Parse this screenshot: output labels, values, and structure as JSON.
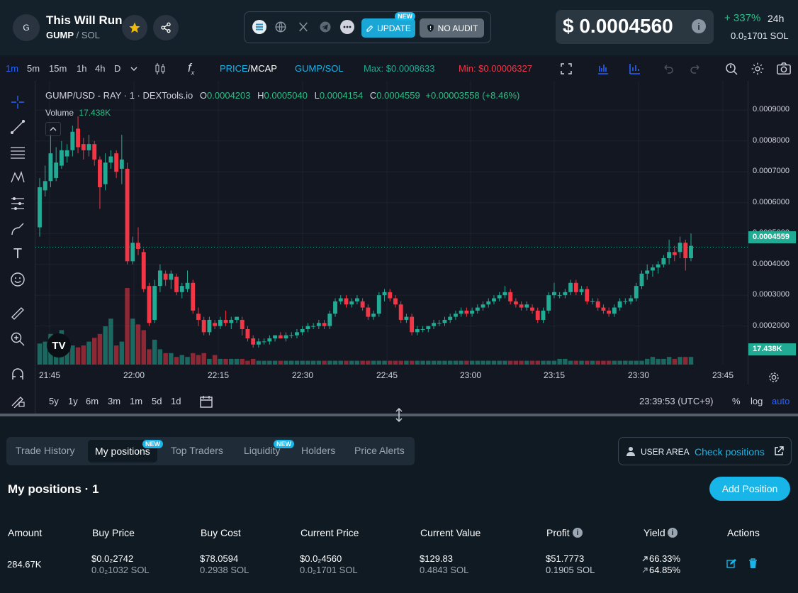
{
  "token": {
    "avatar_letter": "G",
    "name": "This Will Run",
    "symbol": "GUMP",
    "quote": "SOL"
  },
  "header": {
    "update_label": "UPDATE",
    "update_badge": "NEW",
    "audit_label": "NO AUDIT",
    "price": "$ 0.0004560",
    "change": "+ 337%",
    "period": "24h",
    "price_sol": "0.0₂1701 SOL",
    "icons": [
      "star-icon",
      "share-icon",
      "solana-icon",
      "globe-icon",
      "x-icon",
      "telegram-icon",
      "more-icon",
      "edit-icon",
      "shield-icon",
      "info-icon"
    ]
  },
  "toolbar": {
    "intervals": [
      "1m",
      "5m",
      "15m",
      "1h",
      "4h",
      "D"
    ],
    "active_interval": "1m",
    "price_mcap_a": "PRICE",
    "price_mcap_sep": "/",
    "price_mcap_b": "MCAP",
    "pair_toggle": "GUMP/SOL",
    "max": "Max: $0.0008633",
    "min": "Min: $0.00006327"
  },
  "chart": {
    "legend_title": "GUMP/USD - RAY · 1 · DEXTools.io",
    "o": "0.0004203",
    "h": "0.0005040",
    "l": "0.0004154",
    "c": "0.0004559",
    "change": "+0.00003558 (+8.46%)",
    "volume_label": "Volume",
    "volume_value": "17.438K",
    "last_price_tag": "0.0004559",
    "volume_tag": "17.438K",
    "ranges": [
      "5y",
      "1y",
      "6m",
      "3m",
      "1m",
      "5d",
      "1d"
    ],
    "clock": "23:39:53 (UTC+9)",
    "pct": "%",
    "log": "log",
    "auto": "auto",
    "logo": "TV"
  },
  "chart_data": {
    "type": "candlestick",
    "title": "GUMP/USD - RAY · 1 · DEXTools.io",
    "x_ticks": [
      "21:45",
      "22:00",
      "22:15",
      "22:30",
      "22:45",
      "23:00",
      "23:15",
      "23:30",
      "23:45"
    ],
    "y_ticks": [
      "0.0009000",
      "0.0008000",
      "0.0007000",
      "0.0006000",
      "0.0005000",
      "0.0004000",
      "0.0003000",
      "0.0002000"
    ],
    "ylim": [
      7.5e-05,
      0.000995
    ],
    "last_price": 0.0004559,
    "colors": {
      "up": "#22ab94",
      "down": "#f23645"
    },
    "candles": [
      {
        "o": 0.00052,
        "h": 0.00068,
        "l": 0.00049,
        "c": 0.00065
      },
      {
        "o": 0.00064,
        "h": 0.00072,
        "l": 0.00062,
        "c": 0.00067
      },
      {
        "o": 0.00067,
        "h": 0.00082,
        "l": 0.00065,
        "c": 0.00076
      },
      {
        "o": 0.00068,
        "h": 0.00078,
        "l": 0.00067,
        "c": 0.00073
      },
      {
        "o": 0.00072,
        "h": 0.0008,
        "l": 0.00071,
        "c": 0.00077
      },
      {
        "o": 0.00075,
        "h": 0.00079,
        "l": 0.00073,
        "c": 0.00077
      },
      {
        "o": 0.00077,
        "h": 0.00085,
        "l": 0.00075,
        "c": 0.00083
      },
      {
        "o": 0.00084,
        "h": 0.00088,
        "l": 0.00076,
        "c": 0.00078
      },
      {
        "o": 0.00079,
        "h": 0.00081,
        "l": 0.00074,
        "c": 0.00077
      },
      {
        "o": 0.00077,
        "h": 0.00082,
        "l": 0.00075,
        "c": 0.00079
      },
      {
        "o": 0.00079,
        "h": 0.0008,
        "l": 0.00072,
        "c": 0.00074
      },
      {
        "o": 0.00074,
        "h": 0.00075,
        "l": 0.00058,
        "c": 0.00065
      },
      {
        "o": 0.00066,
        "h": 0.00076,
        "l": 0.00064,
        "c": 0.00073
      },
      {
        "o": 0.00073,
        "h": 0.00077,
        "l": 0.00071,
        "c": 0.00075
      },
      {
        "o": 0.00076,
        "h": 0.00077,
        "l": 0.00068,
        "c": 0.0007
      },
      {
        "o": 0.00071,
        "h": 0.00082,
        "l": 0.00066,
        "c": 0.00074
      },
      {
        "o": 0.00071,
        "h": 0.00073,
        "l": 0.0004,
        "c": 0.00041
      },
      {
        "o": 0.00041,
        "h": 0.00049,
        "l": 0.0004,
        "c": 0.00047
      },
      {
        "o": 0.00047,
        "h": 0.00052,
        "l": 0.00043,
        "c": 0.00045
      },
      {
        "o": 0.00044,
        "h": 0.00045,
        "l": 0.00031,
        "c": 0.00032
      },
      {
        "o": 0.00033,
        "h": 0.00034,
        "l": 0.0002,
        "c": 0.00021
      },
      {
        "o": 0.00022,
        "h": 0.00035,
        "l": 0.00021,
        "c": 0.00033
      },
      {
        "o": 0.00033,
        "h": 0.0004,
        "l": 0.00031,
        "c": 0.00038
      },
      {
        "o": 0.00037,
        "h": 0.00038,
        "l": 0.00033,
        "c": 0.00035
      },
      {
        "o": 0.00035,
        "h": 0.00038,
        "l": 0.00032,
        "c": 0.00037
      },
      {
        "o": 0.00036,
        "h": 0.00037,
        "l": 0.0003,
        "c": 0.00031
      },
      {
        "o": 0.00031,
        "h": 0.00034,
        "l": 0.00029,
        "c": 0.00033
      },
      {
        "o": 0.00032,
        "h": 0.00038,
        "l": 0.00031,
        "c": 0.00034
      },
      {
        "o": 0.00034,
        "h": 0.00035,
        "l": 0.00024,
        "c": 0.00025
      },
      {
        "o": 0.00024,
        "h": 0.00026,
        "l": 0.0002,
        "c": 0.00022
      },
      {
        "o": 0.00022,
        "h": 0.00023,
        "l": 0.00017,
        "c": 0.00018
      },
      {
        "o": 0.00018,
        "h": 0.00023,
        "l": 0.00017,
        "c": 0.00022
      },
      {
        "o": 0.00021,
        "h": 0.00022,
        "l": 0.00019,
        "c": 0.0002
      },
      {
        "o": 0.0002,
        "h": 0.00023,
        "l": 0.00019,
        "c": 0.00022
      },
      {
        "o": 0.00022,
        "h": 0.00025,
        "l": 0.0002,
        "c": 0.00021
      },
      {
        "o": 0.00021,
        "h": 0.00023,
        "l": 0.00019,
        "c": 0.00022
      },
      {
        "o": 0.00022,
        "h": 0.00023,
        "l": 0.00021,
        "c": 0.00023
      },
      {
        "o": 0.00022,
        "h": 0.00023,
        "l": 0.00017,
        "c": 0.00019
      },
      {
        "o": 0.00019,
        "h": 0.0002,
        "l": 0.00015,
        "c": 0.00016
      },
      {
        "o": 0.00016,
        "h": 0.00017,
        "l": 0.00013,
        "c": 0.00014
      },
      {
        "o": 0.00014,
        "h": 0.00016,
        "l": 0.00013,
        "c": 0.00015
      },
      {
        "o": 0.00015,
        "h": 0.00016,
        "l": 0.00014,
        "c": 0.00015
      },
      {
        "o": 0.00015,
        "h": 0.00017,
        "l": 0.00014,
        "c": 0.00016
      },
      {
        "o": 0.00016,
        "h": 0.00017,
        "l": 0.00015,
        "c": 0.00017
      },
      {
        "o": 0.00017,
        "h": 0.00018,
        "l": 0.00016,
        "c": 0.00016
      },
      {
        "o": 0.00016,
        "h": 0.00018,
        "l": 0.00015,
        "c": 0.00017
      },
      {
        "o": 0.00017,
        "h": 0.00018,
        "l": 0.00016,
        "c": 0.00017
      },
      {
        "o": 0.00017,
        "h": 0.00019,
        "l": 0.00016,
        "c": 0.00018
      },
      {
        "o": 0.00018,
        "h": 0.0002,
        "l": 0.00017,
        "c": 0.00019
      },
      {
        "o": 0.00019,
        "h": 0.00021,
        "l": 0.00018,
        "c": 0.0002
      },
      {
        "o": 0.0002,
        "h": 0.00021,
        "l": 0.00019,
        "c": 0.0002
      },
      {
        "o": 0.0002,
        "h": 0.00022,
        "l": 0.00019,
        "c": 0.00021
      },
      {
        "o": 0.00021,
        "h": 0.00022,
        "l": 0.00019,
        "c": 0.0002
      },
      {
        "o": 0.0002,
        "h": 0.00025,
        "l": 0.00019,
        "c": 0.00024
      },
      {
        "o": 0.00024,
        "h": 0.00029,
        "l": 0.00023,
        "c": 0.00028
      },
      {
        "o": 0.00028,
        "h": 0.0003,
        "l": 0.00027,
        "c": 0.00029
      },
      {
        "o": 0.00029,
        "h": 0.0003,
        "l": 0.00026,
        "c": 0.00027
      },
      {
        "o": 0.00027,
        "h": 0.00029,
        "l": 0.00026,
        "c": 0.00028
      },
      {
        "o": 0.00028,
        "h": 0.0003,
        "l": 0.00027,
        "c": 0.00029
      },
      {
        "o": 0.00028,
        "h": 0.00029,
        "l": 0.00025,
        "c": 0.00026
      },
      {
        "o": 0.00026,
        "h": 0.00027,
        "l": 0.00022,
        "c": 0.00023
      },
      {
        "o": 0.00023,
        "h": 0.00025,
        "l": 0.00022,
        "c": 0.00024
      },
      {
        "o": 0.00024,
        "h": 0.00031,
        "l": 0.00023,
        "c": 0.0003
      },
      {
        "o": 0.0003,
        "h": 0.00032,
        "l": 0.00028,
        "c": 0.00031
      },
      {
        "o": 0.00031,
        "h": 0.00032,
        "l": 0.00028,
        "c": 0.00029
      },
      {
        "o": 0.00029,
        "h": 0.0003,
        "l": 0.00026,
        "c": 0.00027
      },
      {
        "o": 0.00027,
        "h": 0.00028,
        "l": 0.00021,
        "c": 0.00022
      },
      {
        "o": 0.00022,
        "h": 0.00024,
        "l": 0.00021,
        "c": 0.00023
      },
      {
        "o": 0.00023,
        "h": 0.00024,
        "l": 0.00017,
        "c": 0.00018
      },
      {
        "o": 0.00018,
        "h": 0.0002,
        "l": 0.00017,
        "c": 0.00019
      },
      {
        "o": 0.00019,
        "h": 0.0002,
        "l": 0.00018,
        "c": 0.00019
      },
      {
        "o": 0.00019,
        "h": 0.0002,
        "l": 0.00018,
        "c": 0.0002
      },
      {
        "o": 0.0002,
        "h": 0.00022,
        "l": 0.00019,
        "c": 0.00021
      },
      {
        "o": 0.00021,
        "h": 0.00022,
        "l": 0.0002,
        "c": 0.00021
      },
      {
        "o": 0.00021,
        "h": 0.00023,
        "l": 0.0002,
        "c": 0.00022
      },
      {
        "o": 0.00022,
        "h": 0.00024,
        "l": 0.00021,
        "c": 0.00023
      },
      {
        "o": 0.00023,
        "h": 0.00025,
        "l": 0.00022,
        "c": 0.00024
      },
      {
        "o": 0.00024,
        "h": 0.00026,
        "l": 0.00023,
        "c": 0.00025
      },
      {
        "o": 0.00025,
        "h": 0.00026,
        "l": 0.00023,
        "c": 0.00024
      },
      {
        "o": 0.00024,
        "h": 0.00026,
        "l": 0.00023,
        "c": 0.00025
      },
      {
        "o": 0.00025,
        "h": 0.00027,
        "l": 0.00024,
        "c": 0.00026
      },
      {
        "o": 0.00026,
        "h": 0.00028,
        "l": 0.00025,
        "c": 0.00027
      },
      {
        "o": 0.00027,
        "h": 0.00029,
        "l": 0.00026,
        "c": 0.00028
      },
      {
        "o": 0.00028,
        "h": 0.0003,
        "l": 0.00027,
        "c": 0.00029
      },
      {
        "o": 0.00029,
        "h": 0.00031,
        "l": 0.00028,
        "c": 0.0003
      },
      {
        "o": 0.0003,
        "h": 0.00033,
        "l": 0.00029,
        "c": 0.00031
      },
      {
        "o": 0.00031,
        "h": 0.00032,
        "l": 0.00027,
        "c": 0.00028
      },
      {
        "o": 0.00028,
        "h": 0.00029,
        "l": 0.00026,
        "c": 0.00027
      },
      {
        "o": 0.00027,
        "h": 0.00028,
        "l": 0.00025,
        "c": 0.00026
      },
      {
        "o": 0.00026,
        "h": 0.00028,
        "l": 0.00025,
        "c": 0.00027
      },
      {
        "o": 0.00026,
        "h": 0.00027,
        "l": 0.00024,
        "c": 0.00025
      },
      {
        "o": 0.00025,
        "h": 0.00026,
        "l": 0.00021,
        "c": 0.00022
      },
      {
        "o": 0.00022,
        "h": 0.00026,
        "l": 0.00021,
        "c": 0.00025
      },
      {
        "o": 0.00025,
        "h": 0.00031,
        "l": 0.00024,
        "c": 0.0003
      },
      {
        "o": 0.0003,
        "h": 0.00034,
        "l": 0.00029,
        "c": 0.00031
      },
      {
        "o": 0.0003,
        "h": 0.00031,
        "l": 0.00029,
        "c": 0.0003
      },
      {
        "o": 0.0003,
        "h": 0.00032,
        "l": 0.00029,
        "c": 0.00031
      },
      {
        "o": 0.00031,
        "h": 0.00035,
        "l": 0.0003,
        "c": 0.00034
      },
      {
        "o": 0.00034,
        "h": 0.00035,
        "l": 0.0003,
        "c": 0.00031
      },
      {
        "o": 0.00031,
        "h": 0.00033,
        "l": 0.0003,
        "c": 0.00032
      },
      {
        "o": 0.00032,
        "h": 0.00033,
        "l": 0.00027,
        "c": 0.00028
      },
      {
        "o": 0.00028,
        "h": 0.00029,
        "l": 0.00027,
        "c": 0.00028
      },
      {
        "o": 0.00028,
        "h": 0.00029,
        "l": 0.00025,
        "c": 0.00026
      },
      {
        "o": 0.00026,
        "h": 0.00027,
        "l": 0.00024,
        "c": 0.00025
      },
      {
        "o": 0.00025,
        "h": 0.00026,
        "l": 0.00023,
        "c": 0.00024
      },
      {
        "o": 0.00024,
        "h": 0.00027,
        "l": 0.00023,
        "c": 0.00026
      },
      {
        "o": 0.00026,
        "h": 0.00029,
        "l": 0.00025,
        "c": 0.00028
      },
      {
        "o": 0.00028,
        "h": 0.00029,
        "l": 0.00027,
        "c": 0.00028
      },
      {
        "o": 0.00028,
        "h": 0.0003,
        "l": 0.00027,
        "c": 0.00029
      },
      {
        "o": 0.00029,
        "h": 0.00034,
        "l": 0.00028,
        "c": 0.00033
      },
      {
        "o": 0.00033,
        "h": 0.00038,
        "l": 0.00032,
        "c": 0.00037
      },
      {
        "o": 0.00037,
        "h": 0.0004,
        "l": 0.00035,
        "c": 0.00038
      },
      {
        "o": 0.00038,
        "h": 0.0004,
        "l": 0.00036,
        "c": 0.00039
      },
      {
        "o": 0.00039,
        "h": 0.00041,
        "l": 0.00037,
        "c": 0.0004
      },
      {
        "o": 0.0004,
        "h": 0.00043,
        "l": 0.00039,
        "c": 0.00042
      },
      {
        "o": 0.00042,
        "h": 0.00048,
        "l": 0.0004,
        "c": 0.00044
      },
      {
        "o": 0.00044,
        "h": 0.00046,
        "l": 0.00041,
        "c": 0.00043
      },
      {
        "o": 0.00044,
        "h": 0.00049,
        "l": 0.00042,
        "c": 0.00047
      },
      {
        "o": 0.00047,
        "h": 0.00048,
        "l": 0.00038,
        "c": 0.00042
      },
      {
        "o": 0.00042,
        "h": 0.0005,
        "l": 0.00041,
        "c": 0.00046
      }
    ],
    "volumes": [
      0.11,
      0.12,
      0.16,
      0.12,
      0.18,
      0.1,
      0.1,
      0.09,
      0.1,
      0.12,
      0.14,
      0.16,
      0.2,
      0.24,
      0.1,
      0.12,
      0.4,
      0.24,
      0.21,
      0.18,
      0.08,
      0.13,
      0.08,
      0.06,
      0.06,
      0.04,
      0.05,
      0.04,
      0.06,
      0.05,
      0.06,
      0.03,
      0.05,
      0.03,
      0.03,
      0.03,
      0.03,
      0.03,
      0.02,
      0.03,
      0.02,
      0.02,
      0.02,
      0.02,
      0.02,
      0.02,
      0.02,
      0.02,
      0.02,
      0.02,
      0.02,
      0.02,
      0.02,
      0.02,
      0.02,
      0.02,
      0.02,
      0.02,
      0.02,
      0.02,
      0.02,
      0.02,
      0.02,
      0.02,
      0.02,
      0.02,
      0.02,
      0.02,
      0.02,
      0.02,
      0.02,
      0.02,
      0.02,
      0.02,
      0.02,
      0.02,
      0.02,
      0.02,
      0.02,
      0.02,
      0.02,
      0.02,
      0.02,
      0.02,
      0.02,
      0.02,
      0.02,
      0.02,
      0.02,
      0.02,
      0.02,
      0.02,
      0.02,
      0.02,
      0.02,
      0.03,
      0.03,
      0.02,
      0.02,
      0.02,
      0.02,
      0.02,
      0.02,
      0.02,
      0.02,
      0.02,
      0.02,
      0.02,
      0.02,
      0.02,
      0.02,
      0.03,
      0.04,
      0.03,
      0.03,
      0.04,
      0.03,
      0.04,
      0.04,
      0.04
    ]
  },
  "tabs": {
    "items": [
      "Trade History",
      "My positions",
      "Top Traders",
      "Liquidity",
      "Holders",
      "Price Alerts"
    ],
    "badge": "NEW"
  },
  "user_area": {
    "label": "USER AREA",
    "link": "Check positions"
  },
  "positions": {
    "title": "My positions · 1",
    "add_button": "Add Position",
    "headers": [
      "Amount",
      "Buy Price",
      "Buy Cost",
      "Current Price",
      "Current Value",
      "Profit",
      "Yield",
      "Actions"
    ],
    "row": {
      "amount": "284.67K",
      "buy_price": "$0.0₂2742",
      "buy_price_sol": "0.0₂1032 SOL",
      "buy_cost": "$78.0594",
      "buy_cost_sol": "0.2938 SOL",
      "current_price": "$0.0₂4560",
      "current_price_sol": "0.0₂1701 SOL",
      "current_value": "$129.83",
      "current_value_sol": "0.4843 SOL",
      "profit": "$51.7773",
      "profit_sol": "0.1905 SOL",
      "yield_usd": "66.33%",
      "yield_sol": "64.85%"
    }
  }
}
